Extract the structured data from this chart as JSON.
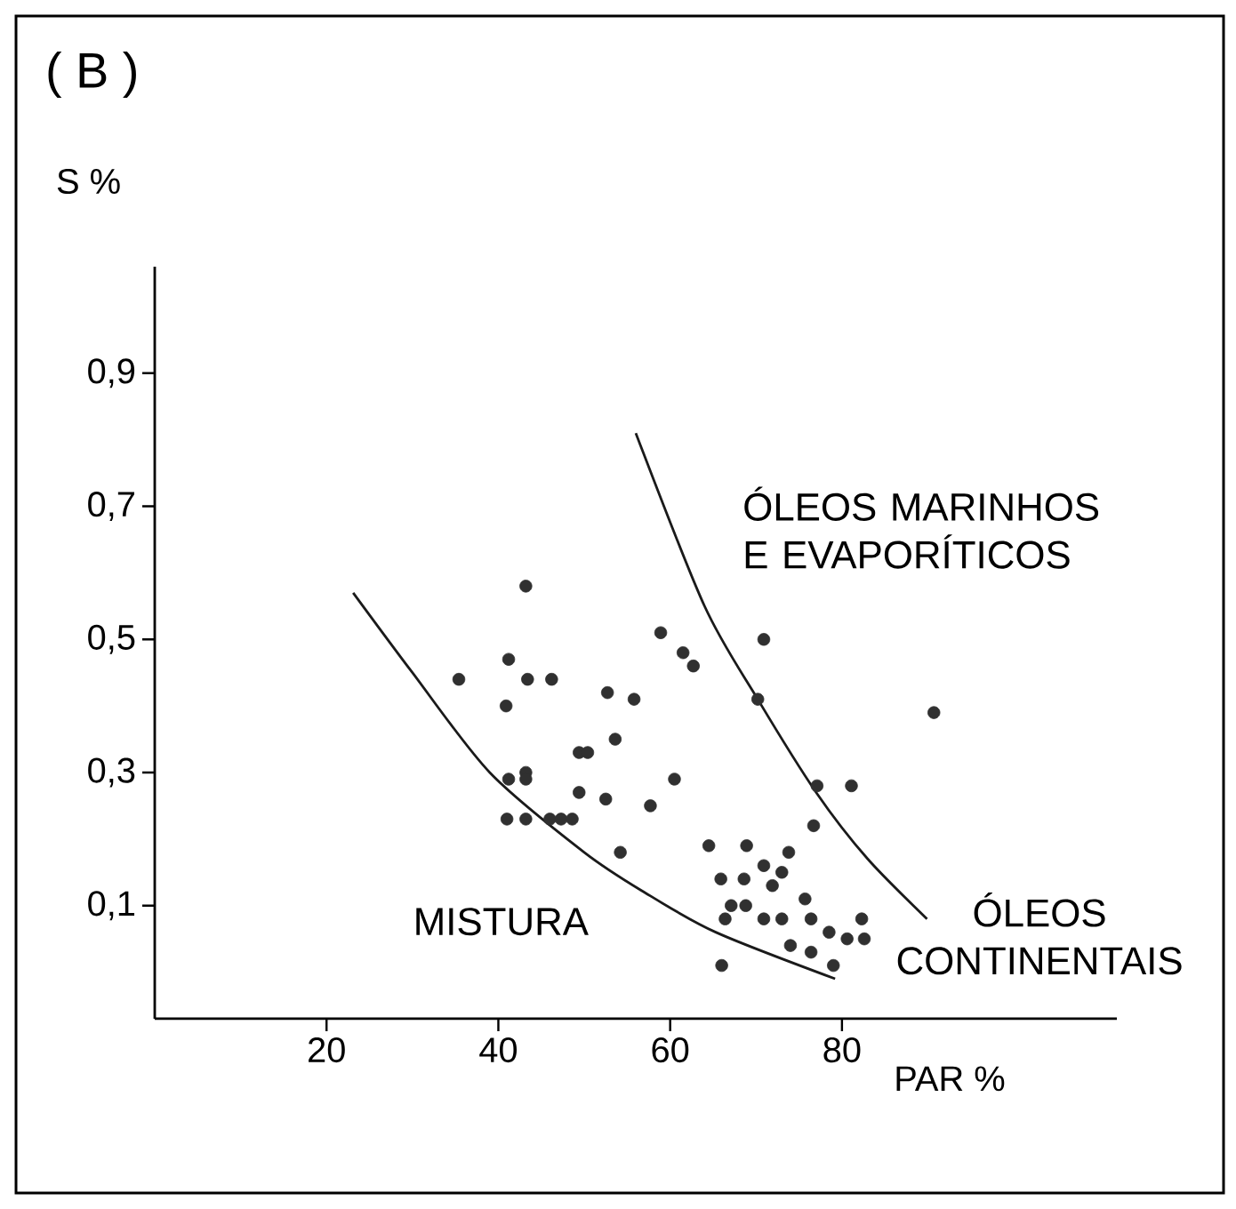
{
  "chart_data": {
    "type": "scatter",
    "title": "( B )",
    "ylabel": "S %",
    "xlabel": "PAR %",
    "xlim": [
      0,
      112
    ],
    "ylim": [
      -0.07,
      1.06
    ],
    "xticks": [
      20,
      40,
      60,
      80
    ],
    "yticks": [
      {
        "value": 0.1,
        "label": "0,1"
      },
      {
        "value": 0.3,
        "label": "0,3"
      },
      {
        "value": 0.5,
        "label": "0,5"
      },
      {
        "value": 0.7,
        "label": "0,7"
      },
      {
        "value": 0.9,
        "label": "0,9"
      }
    ],
    "annotations": [
      "ÓLEOS MARINHOS E EVAPORÍTICOS",
      "MISTURA",
      "ÓLEOS CONTINENTAIS"
    ],
    "series": [
      {
        "marker": "circle",
        "color": "#303030",
        "x": [
          35.4,
          41.2,
          43.2,
          43.4,
          46.2,
          40.9,
          52.7,
          55.8,
          53.6,
          49.4,
          50.4,
          41.2,
          43.2,
          43.2,
          41,
          43.2,
          46,
          47.3,
          48.6,
          49.4,
          52.5,
          54.2,
          58.9,
          61.5,
          62.7,
          70.9,
          70.2,
          90.7,
          60.5,
          57.7,
          77.1,
          81.1,
          76.7,
          64.5,
          68.9,
          73.8,
          65.9,
          68.6,
          70.9,
          73,
          71.9,
          75.7,
          82.3,
          66.4,
          67.1,
          68.8,
          70.9,
          73,
          74,
          76.4,
          76.4,
          78.5,
          80.6,
          82.6,
          66,
          79
        ],
        "values": [
          0.44,
          0.47,
          0.58,
          0.44,
          0.44,
          0.4,
          0.42,
          0.41,
          0.35,
          0.33,
          0.33,
          0.29,
          0.3,
          0.29,
          0.23,
          0.23,
          0.23,
          0.23,
          0.23,
          0.27,
          0.26,
          0.18,
          0.51,
          0.48,
          0.46,
          0.5,
          0.41,
          0.39,
          0.29,
          0.25,
          0.28,
          0.28,
          0.22,
          0.19,
          0.19,
          0.18,
          0.14,
          0.14,
          0.16,
          0.15,
          0.13,
          0.11,
          0.08,
          0.08,
          0.1,
          0.1,
          0.08,
          0.08,
          0.04,
          0.08,
          0.03,
          0.06,
          0.05,
          0.05,
          0.01,
          0.01
        ]
      },
      {
        "type": "line",
        "marker": "none",
        "color": "#1a1a1a",
        "x": [
          23.1,
          30,
          39,
          50,
          57,
          65.3,
          79.2
        ],
        "values": [
          0.57,
          0.45,
          0.3,
          0.18,
          0.12,
          0.06,
          -0.01
        ]
      },
      {
        "type": "line",
        "marker": "none",
        "color": "#1a1a1a",
        "x": [
          56,
          64,
          70.2,
          77,
          83,
          89.9
        ],
        "values": [
          0.81,
          0.55,
          0.41,
          0.27,
          0.17,
          0.08
        ]
      }
    ]
  }
}
